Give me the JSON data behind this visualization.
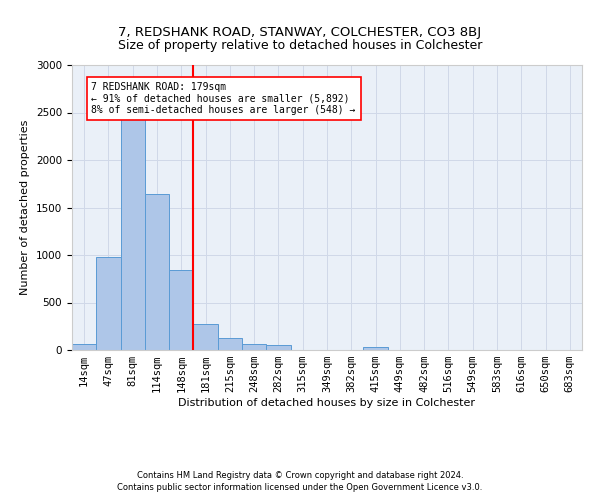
{
  "title": "7, REDSHANK ROAD, STANWAY, COLCHESTER, CO3 8BJ",
  "subtitle": "Size of property relative to detached houses in Colchester",
  "xlabel": "Distribution of detached houses by size in Colchester",
  "ylabel": "Number of detached properties",
  "footnote1": "Contains HM Land Registry data © Crown copyright and database right 2024.",
  "footnote2": "Contains public sector information licensed under the Open Government Licence v3.0.",
  "categories": [
    "14sqm",
    "47sqm",
    "81sqm",
    "114sqm",
    "148sqm",
    "181sqm",
    "215sqm",
    "248sqm",
    "282sqm",
    "315sqm",
    "349sqm",
    "382sqm",
    "415sqm",
    "449sqm",
    "482sqm",
    "516sqm",
    "549sqm",
    "583sqm",
    "616sqm",
    "650sqm",
    "683sqm"
  ],
  "values": [
    60,
    980,
    2470,
    1640,
    840,
    270,
    130,
    60,
    55,
    0,
    0,
    0,
    30,
    0,
    0,
    0,
    0,
    0,
    0,
    0,
    0
  ],
  "bar_color": "#aec6e8",
  "bar_edge_color": "#5a9bd5",
  "vline_x": 4.5,
  "vline_color": "red",
  "annotation_title": "7 REDSHANK ROAD: 179sqm",
  "annotation_line1": "← 91% of detached houses are smaller (5,892)",
  "annotation_line2": "8% of semi-detached houses are larger (548) →",
  "ylim": [
    0,
    3000
  ],
  "yticks": [
    0,
    500,
    1000,
    1500,
    2000,
    2500,
    3000
  ],
  "grid_color": "#d0d8e8",
  "background_color": "#eaf0f8",
  "title_fontsize": 9.5,
  "axis_label_fontsize": 8,
  "tick_fontsize": 7.5,
  "footnote_fontsize": 6
}
